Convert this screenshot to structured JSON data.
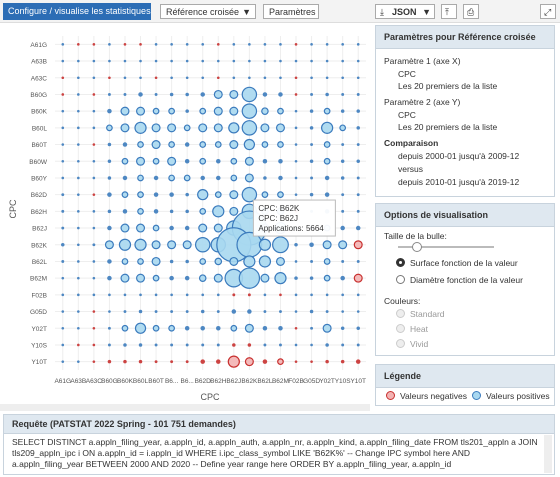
{
  "toolbar": {
    "tab": "Configure / visualise les statistiques",
    "mode": "Référence croisée",
    "params_button": "Paramètres",
    "export": "JSON"
  },
  "chart_data": {
    "type": "bubble",
    "x_label": "CPC",
    "y_label": "CPC",
    "x_categories": [
      "A61G",
      "A63B",
      "A63C",
      "B60G",
      "B60K",
      "B60L",
      "B60T",
      "B6...",
      "B6...",
      "B62D",
      "B62H",
      "B62J",
      "B62K",
      "B62L",
      "B62M",
      "F02B",
      "G05D",
      "Y02T",
      "Y10S",
      "Y10T"
    ],
    "y_categories": [
      "A61G",
      "A63B",
      "A63C",
      "B60G",
      "B60K",
      "B60L",
      "B60T",
      "B60W",
      "B60Y",
      "B62D",
      "B62H",
      "B62J",
      "B62K",
      "B62L",
      "B62M",
      "F02B",
      "G05D",
      "Y02T",
      "Y10S",
      "Y10T"
    ],
    "grid": true,
    "colors": {
      "positive": {
        "fill": "#a9d8f0",
        "stroke": "#3b7bbd"
      },
      "negative": {
        "fill": "#f3b3b3",
        "stroke": "#c8302f"
      }
    },
    "values": [
      [
        5,
        -3,
        -3,
        5,
        -5,
        -5,
        5,
        5,
        5,
        5,
        -5,
        5,
        5,
        5,
        5,
        -5,
        5,
        5,
        5,
        5
      ],
      [
        5,
        5,
        5,
        5,
        5,
        5,
        5,
        5,
        5,
        5,
        5,
        5,
        5,
        5,
        5,
        5,
        5,
        5,
        5,
        5
      ],
      [
        -3,
        5,
        5,
        -3,
        5,
        5,
        -5,
        5,
        5,
        5,
        -5,
        5,
        5,
        5,
        5,
        -3,
        5,
        5,
        5,
        5
      ],
      [
        -20,
        5,
        -5,
        40,
        40,
        100,
        40,
        60,
        60,
        100,
        300,
        300,
        1000,
        100,
        100,
        -20,
        40,
        60,
        40,
        40
      ],
      [
        5,
        5,
        5,
        100,
        300,
        300,
        150,
        150,
        60,
        150,
        300,
        300,
        1000,
        200,
        150,
        5,
        60,
        150,
        60,
        60
      ],
      [
        5,
        5,
        5,
        150,
        300,
        600,
        300,
        300,
        150,
        300,
        300,
        500,
        1000,
        300,
        300,
        5,
        60,
        600,
        150,
        60
      ],
      [
        5,
        5,
        -5,
        60,
        100,
        150,
        300,
        150,
        100,
        150,
        150,
        300,
        500,
        150,
        150,
        5,
        40,
        150,
        40,
        40
      ],
      [
        5,
        5,
        5,
        60,
        150,
        300,
        150,
        300,
        100,
        150,
        100,
        150,
        300,
        100,
        100,
        5,
        60,
        150,
        60,
        60
      ],
      [
        5,
        5,
        5,
        60,
        100,
        150,
        100,
        150,
        150,
        100,
        100,
        150,
        300,
        60,
        100,
        5,
        40,
        100,
        60,
        40
      ],
      [
        40,
        5,
        -5,
        100,
        150,
        150,
        100,
        100,
        60,
        500,
        150,
        300,
        1000,
        150,
        150,
        5,
        60,
        100,
        40,
        40
      ],
      [
        40,
        5,
        5,
        60,
        100,
        150,
        100,
        60,
        60,
        150,
        600,
        300,
        1000,
        200,
        200,
        -5,
        40,
        100,
        40,
        40
      ],
      [
        40,
        5,
        5,
        100,
        300,
        300,
        150,
        100,
        100,
        300,
        300,
        1000,
        5664,
        300,
        600,
        40,
        60,
        150,
        100,
        100
      ],
      [
        60,
        5,
        40,
        300,
        600,
        600,
        300,
        300,
        300,
        1000,
        1000,
        5664,
        3000,
        600,
        1200,
        60,
        100,
        300,
        300,
        -300
      ],
      [
        40,
        5,
        5,
        100,
        150,
        150,
        300,
        60,
        60,
        150,
        200,
        300,
        600,
        600,
        300,
        5,
        40,
        150,
        40,
        40
      ],
      [
        5,
        5,
        5,
        100,
        300,
        300,
        150,
        100,
        100,
        200,
        300,
        1500,
        2000,
        300,
        600,
        60,
        60,
        150,
        100,
        -300
      ],
      [
        5,
        5,
        5,
        5,
        5,
        5,
        5,
        5,
        5,
        5,
        5,
        -40,
        -40,
        5,
        -5,
        5,
        5,
        5,
        5,
        5
      ],
      [
        5,
        5,
        -5,
        5,
        40,
        60,
        40,
        40,
        40,
        60,
        40,
        100,
        100,
        40,
        40,
        5,
        60,
        40,
        5,
        5
      ],
      [
        5,
        5,
        -5,
        40,
        150,
        500,
        150,
        150,
        100,
        100,
        100,
        150,
        300,
        100,
        100,
        -5,
        40,
        300,
        60,
        60
      ],
      [
        5,
        -5,
        -5,
        40,
        60,
        60,
        40,
        40,
        40,
        40,
        40,
        -60,
        -60,
        40,
        40,
        5,
        5,
        60,
        40,
        40
      ],
      [
        5,
        5,
        -5,
        -60,
        -60,
        -60,
        -40,
        -40,
        -40,
        -100,
        -100,
        -600,
        -300,
        -100,
        -150,
        -5,
        -5,
        -60,
        -60,
        -100
      ]
    ],
    "tooltip": {
      "lines": [
        "CPC: B62K",
        "CPC: B62J",
        "Applications: 5664"
      ]
    }
  },
  "panel": {
    "title": "Paramètres pour Référence croisée",
    "param1": {
      "label": "Paramètre 1 (axe X)",
      "field": "CPC",
      "scope": "Les 20 premiers de la liste"
    },
    "param2": {
      "label": "Paramètre 2 (axe Y)",
      "field": "CPC",
      "scope": "Les 20 premiers de la liste"
    },
    "comparison": {
      "label": "Comparaison",
      "from": "depuis 2000-01 jusqu'à 2009-12",
      "versus": "versus",
      "to": "depuis 2010-01 jusqu'à 2019-12"
    }
  },
  "options": {
    "title": "Options de visualisation",
    "size_label": "Taille de la bulle:",
    "size_area": "Surface fonction de la valeur",
    "size_diameter": "Diamètre fonction de la valeur",
    "colors_label": "Couleurs:",
    "schemes": [
      "Standard",
      "Heat",
      "Vivid"
    ]
  },
  "legend": {
    "title": "Légende",
    "negative": "Valeurs negatives",
    "positive": "Valeurs positives"
  },
  "query": {
    "title": "Requête (PATSTAT 2022 Spring - 101 751 demandes)",
    "sql": "SELECT DISTINCT a.appln_filing_year, a.appln_id, a.appln_auth, a.appln_nr, a.appln_kind, a.appln_filing_date FROM tls201_appln a JOIN tls209_appln_ipc i ON a.appln_id = i.appln_id WHERE i.ipc_class_symbol LIKE 'B62K%' -- Change IPC symbol here AND a.appln_filing_year BETWEEN 2000 AND 2020 -- Define year range here ORDER BY a.appln_filing_year, a.appln_id"
  }
}
